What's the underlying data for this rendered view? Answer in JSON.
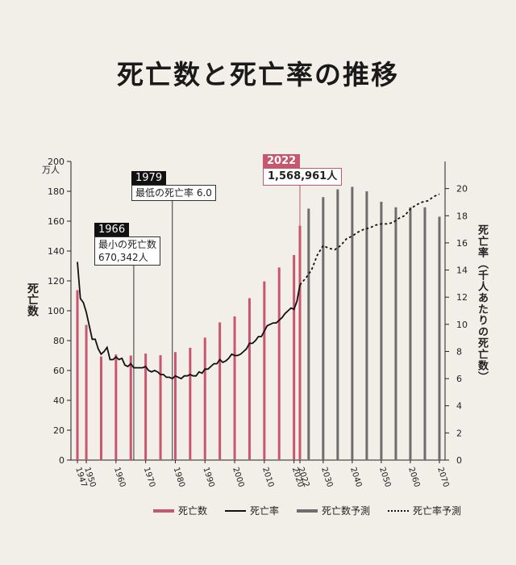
{
  "title": "死亡数と死亡率の推移",
  "left_axis": {
    "label": "死亡数",
    "unit": "万人",
    "ticks": [
      "0",
      "20",
      "40",
      "60",
      "80",
      "100",
      "120",
      "140",
      "160",
      "180",
      "200"
    ]
  },
  "right_axis": {
    "label": "死亡率（千人あたりの死亡数）",
    "ticks": [
      "0",
      "2",
      "4",
      "6",
      "8",
      "10",
      "12",
      "14",
      "16",
      "18",
      "20"
    ]
  },
  "x_ticks": [
    "1947",
    "1950",
    "1960",
    "1970",
    "1980",
    "1990",
    "2000",
    "2010",
    "2020",
    "2022",
    "2030",
    "2040",
    "2050",
    "2060",
    "2070"
  ],
  "annotations": {
    "a1966": {
      "year": "1966",
      "line1": "最小の死亡数",
      "line2": "670,342人"
    },
    "a1979": {
      "year": "1979",
      "line1": "最低の死亡率 6.0"
    },
    "a2022": {
      "year": "2022",
      "line1": "1,568,961人"
    }
  },
  "legend": [
    "死亡数",
    "死亡率",
    "死亡数予測",
    "死亡率予測"
  ],
  "colors": {
    "deaths": "#c7566e",
    "rate": "#111111",
    "deaths_forecast": "#6d6d6d",
    "background": "#f1efe7"
  },
  "chart_data": {
    "type": "bar",
    "deaths": {
      "name": "死亡数",
      "unit": "万人",
      "ylim": [
        0,
        200
      ],
      "x": [
        1947,
        1950,
        1955,
        1960,
        1965,
        1970,
        1975,
        1980,
        1985,
        1990,
        1995,
        2000,
        2005,
        2010,
        2015,
        2020,
        2022
      ],
      "values": [
        113.8,
        90.5,
        69.4,
        70.7,
        70.0,
        71.3,
        70.2,
        72.3,
        75.2,
        82.0,
        92.2,
        96.2,
        108.4,
        119.7,
        129.0,
        137.3,
        156.9
      ]
    },
    "deaths_forecast": {
      "name": "死亡数予測",
      "unit": "万人",
      "x": [
        2025,
        2030,
        2035,
        2040,
        2045,
        2050,
        2055,
        2060,
        2065,
        2070
      ],
      "values": [
        168.4,
        176.1,
        181.3,
        183.0,
        180.0,
        173.0,
        169.3,
        169.3,
        169.3,
        163.0
      ]
    },
    "rate": {
      "name": "死亡率",
      "ylim": [
        0,
        22
      ],
      "x": [
        1947,
        1948,
        1949,
        1950,
        1951,
        1952,
        1953,
        1954,
        1955,
        1956,
        1957,
        1958,
        1959,
        1960,
        1961,
        1962,
        1963,
        1964,
        1965,
        1966,
        1967,
        1968,
        1969,
        1970,
        1971,
        1972,
        1973,
        1974,
        1975,
        1976,
        1977,
        1978,
        1979,
        1980,
        1981,
        1982,
        1983,
        1984,
        1985,
        1986,
        1987,
        1988,
        1989,
        1990,
        1991,
        1992,
        1993,
        1994,
        1995,
        1996,
        1997,
        1998,
        1999,
        2000,
        2001,
        2002,
        2003,
        2004,
        2005,
        2006,
        2007,
        2008,
        2009,
        2010,
        2011,
        2012,
        2013,
        2014,
        2015,
        2016,
        2017,
        2018,
        2019,
        2020,
        2021,
        2022
      ],
      "values": [
        14.6,
        11.9,
        11.6,
        10.9,
        9.9,
        8.9,
        8.9,
        8.2,
        7.8,
        8.0,
        8.3,
        7.4,
        7.4,
        7.6,
        7.4,
        7.5,
        7.0,
        6.9,
        7.1,
        6.8,
        6.8,
        6.8,
        6.8,
        6.9,
        6.6,
        6.5,
        6.6,
        6.5,
        6.3,
        6.3,
        6.1,
        6.1,
        6.0,
        6.2,
        6.1,
        6.0,
        6.2,
        6.2,
        6.3,
        6.2,
        6.2,
        6.5,
        6.4,
        6.7,
        6.7,
        6.9,
        7.1,
        7.1,
        7.4,
        7.2,
        7.3,
        7.5,
        7.8,
        7.7,
        7.7,
        7.8,
        8.0,
        8.2,
        8.6,
        8.6,
        8.8,
        9.1,
        9.1,
        9.5,
        9.9,
        10.0,
        10.1,
        10.1,
        10.3,
        10.5,
        10.8,
        11.0,
        11.2,
        11.1,
        11.7,
        12.9
      ]
    },
    "rate_forecast": {
      "name": "死亡率予測",
      "x": [
        2022,
        2024,
        2026,
        2028,
        2030,
        2032,
        2034,
        2036,
        2038,
        2040,
        2042,
        2044,
        2046,
        2048,
        2050,
        2052,
        2054,
        2056,
        2058,
        2060,
        2062,
        2064,
        2066,
        2068,
        2070
      ],
      "values": [
        12.9,
        13.4,
        14.0,
        15.1,
        15.8,
        15.6,
        15.5,
        15.8,
        16.3,
        16.5,
        16.8,
        17.0,
        17.1,
        17.3,
        17.4,
        17.4,
        17.5,
        17.8,
        18.0,
        18.5,
        18.8,
        19.0,
        19.1,
        19.4,
        19.6
      ]
    }
  }
}
